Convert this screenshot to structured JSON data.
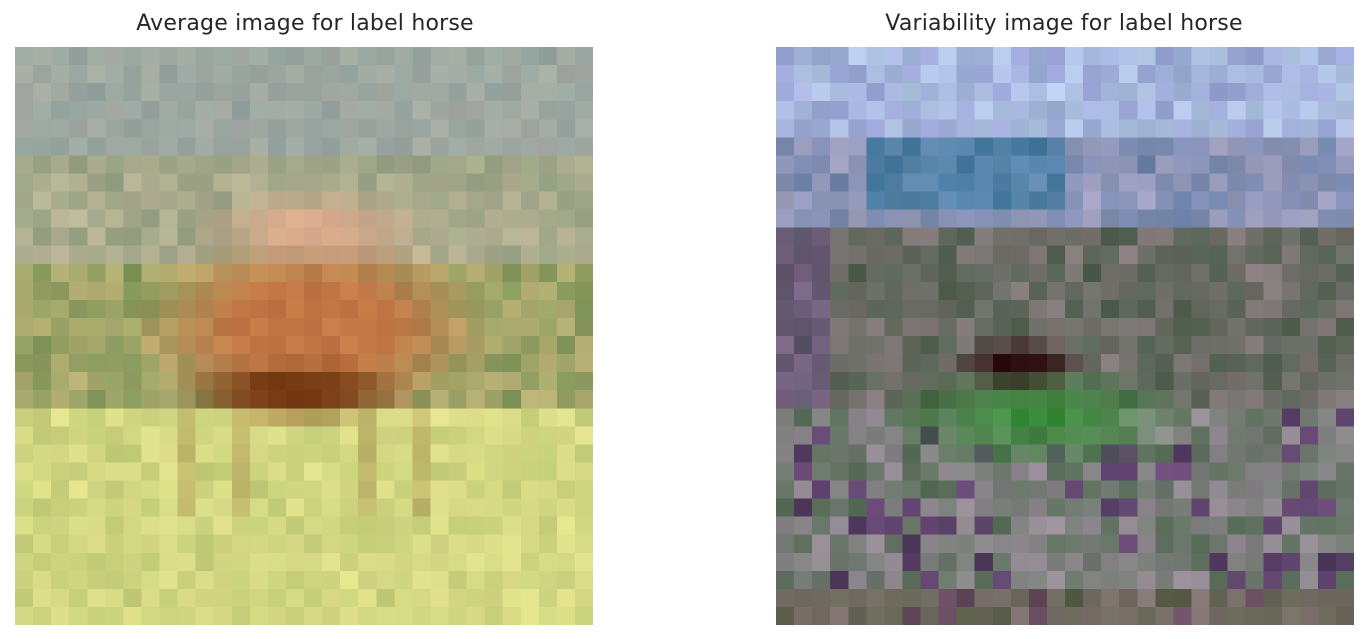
{
  "figure": {
    "panels": [
      {
        "title": "Average image for label horse",
        "image_kind": "average",
        "grid": 32
      },
      {
        "title": "Variability image for label horse",
        "image_kind": "variability",
        "grid": 32
      }
    ]
  },
  "colors": {
    "title_text": "#262626",
    "background": "#ffffff"
  }
}
